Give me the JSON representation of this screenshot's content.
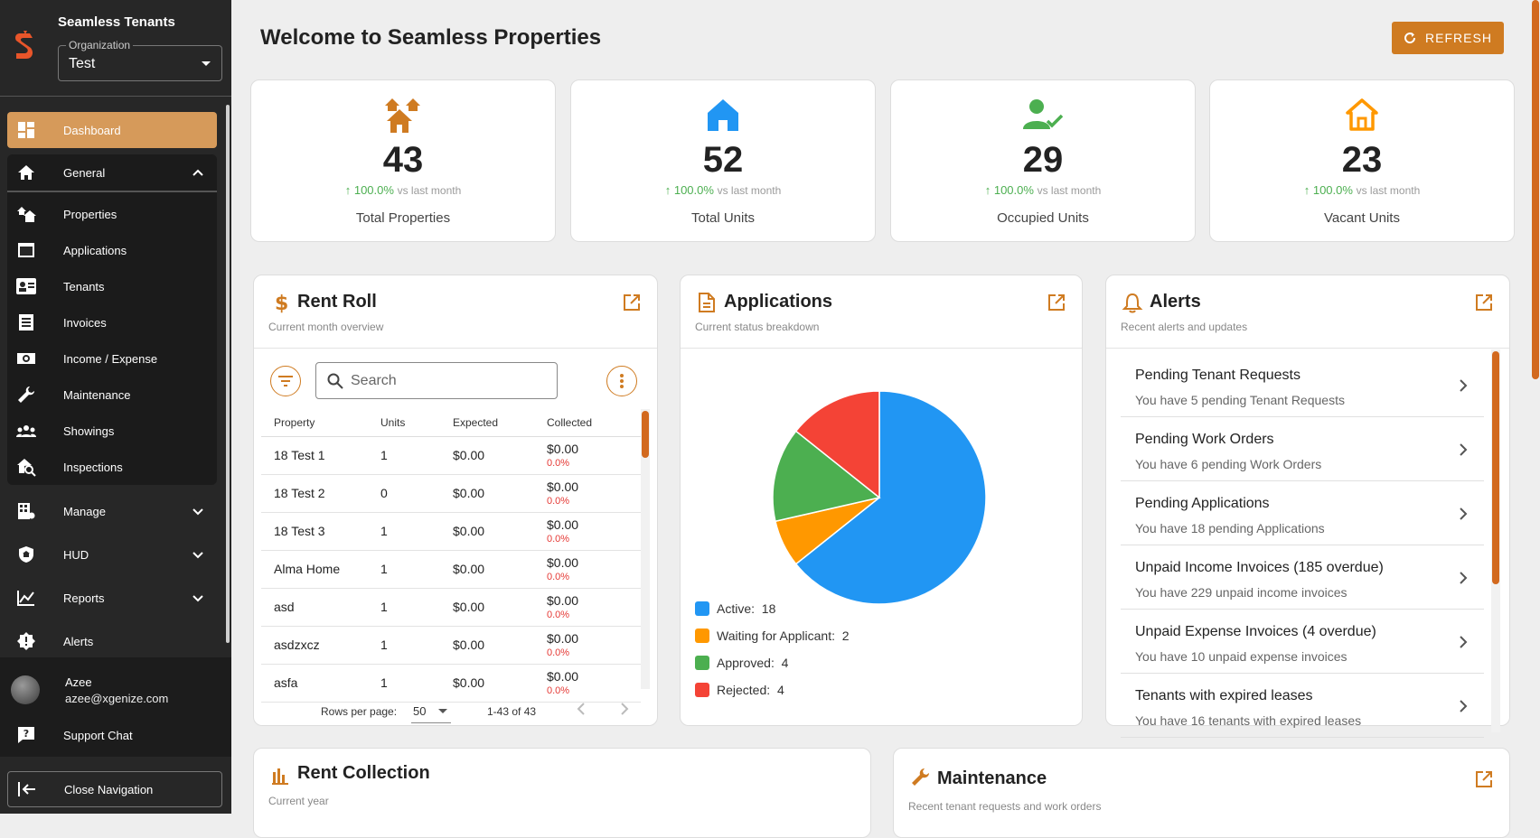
{
  "sidebar": {
    "brand_name": "Seamless Tenants",
    "org_label": "Organization",
    "org_value": "Test",
    "dashboard": "Dashboard",
    "general": "General",
    "general_items": [
      "Properties",
      "Applications",
      "Tenants",
      "Invoices",
      "Income / Expense",
      "Maintenance",
      "Showings",
      "Inspections"
    ],
    "manage": "Manage",
    "hud": "HUD",
    "reports": "Reports",
    "alerts": "Alerts",
    "user_name": "Azee",
    "user_email": "azee@xgenize.com",
    "support_chat": "Support Chat",
    "close_nav": "Close Navigation",
    "accent": "#d69a5a"
  },
  "header": {
    "title": "Welcome to Seamless Properties",
    "refresh": "REFRESH",
    "accent": "#cf7b21"
  },
  "stats": [
    {
      "value": "43",
      "trend": "100.0%",
      "vs": "vs last month",
      "label": "Total Properties"
    },
    {
      "value": "52",
      "trend": "100.0%",
      "vs": "vs last month",
      "label": "Total Units"
    },
    {
      "value": "29",
      "trend": "100.0%",
      "vs": "vs last month",
      "label": "Occupied Units"
    },
    {
      "value": "23",
      "trend": "100.0%",
      "vs": "vs last month",
      "label": "Vacant Units"
    }
  ],
  "rent_roll": {
    "title": "Rent Roll",
    "subtitle": "Current month overview",
    "search_placeholder": "Search",
    "columns": [
      "Property",
      "Units",
      "Expected",
      "Collected"
    ],
    "rows": [
      {
        "property": "18 Test 1",
        "units": "1",
        "expected": "$0.00",
        "collected": "$0.00",
        "pct": "0.0%"
      },
      {
        "property": "18 Test 2",
        "units": "0",
        "expected": "$0.00",
        "collected": "$0.00",
        "pct": "0.0%"
      },
      {
        "property": "18 Test 3",
        "units": "1",
        "expected": "$0.00",
        "collected": "$0.00",
        "pct": "0.0%"
      },
      {
        "property": "Alma Home",
        "units": "1",
        "expected": "$0.00",
        "collected": "$0.00",
        "pct": "0.0%"
      },
      {
        "property": "asd",
        "units": "1",
        "expected": "$0.00",
        "collected": "$0.00",
        "pct": "0.0%"
      },
      {
        "property": "asdzxcz",
        "units": "1",
        "expected": "$0.00",
        "collected": "$0.00",
        "pct": "0.0%"
      },
      {
        "property": "asfa",
        "units": "1",
        "expected": "$0.00",
        "collected": "$0.00",
        "pct": "0.0%"
      }
    ],
    "rows_per_page_label": "Rows per page:",
    "rows_per_page": "50",
    "range": "1-43 of 43"
  },
  "applications": {
    "title": "Applications",
    "subtitle": "Current status breakdown"
  },
  "chart_data": {
    "type": "pie",
    "title": "Applications",
    "categories": [
      "Active",
      "Waiting for Applicant",
      "Approved",
      "Rejected"
    ],
    "values": [
      18,
      2,
      4,
      4
    ],
    "colors": [
      "#2196f3",
      "#ff9800",
      "#4caf50",
      "#f44336"
    ]
  },
  "alerts": {
    "title": "Alerts",
    "subtitle": "Recent alerts and updates",
    "items": [
      {
        "title": "Pending Tenant Requests",
        "desc": "You have 5 pending Tenant Requests"
      },
      {
        "title": "Pending Work Orders",
        "desc": "You have 6 pending Work Orders"
      },
      {
        "title": "Pending Applications",
        "desc": "You have 18 pending Applications"
      },
      {
        "title": "Unpaid Income Invoices (185 overdue)",
        "desc": "You have 229 unpaid income invoices"
      },
      {
        "title": "Unpaid Expense Invoices (4 overdue)",
        "desc": "You have 10 unpaid expense invoices"
      },
      {
        "title": "Tenants with expired leases",
        "desc": "You have 16 tenants with expired leases"
      }
    ]
  },
  "rent_collection": {
    "title": "Rent Collection",
    "subtitle": "Current year"
  },
  "maintenance": {
    "title": "Maintenance",
    "subtitle": "Recent tenant requests and work orders"
  }
}
